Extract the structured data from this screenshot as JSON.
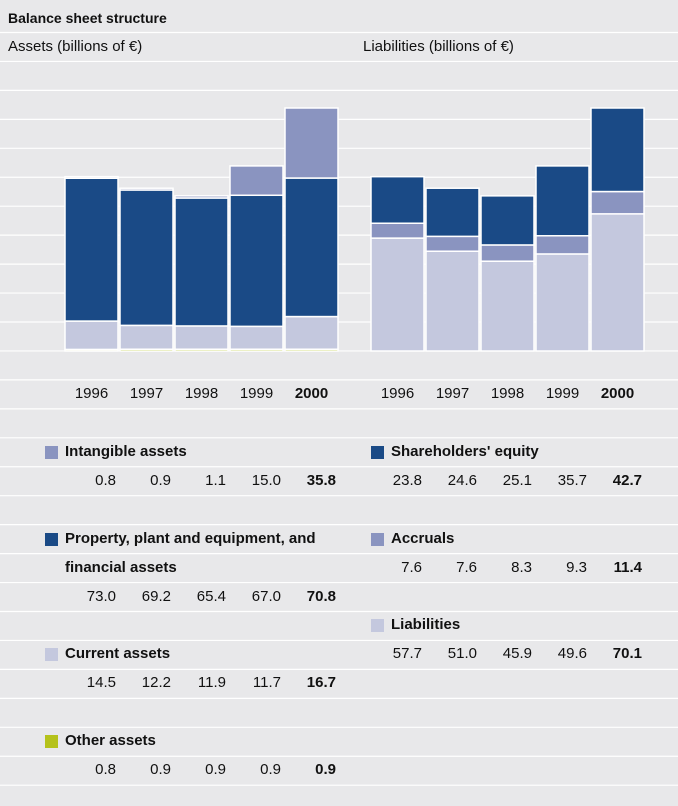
{
  "title": "Balance sheet structure",
  "chart_data": [
    {
      "type": "bar",
      "stacked": true,
      "subtitle": "Assets (billions of €)",
      "categories": [
        "1996",
        "1997",
        "1998",
        "1999",
        "2000"
      ],
      "series": [
        {
          "name": "Intangible assets",
          "color": "#8a94c0",
          "values": [
            0.8,
            0.9,
            1.1,
            15.0,
            35.8
          ],
          "value_labels": [
            "0.8",
            "0.9",
            "1.1",
            "15.0",
            "35.8"
          ]
        },
        {
          "name": "Property, plant and equipment, and financial assets",
          "color": "#1a4a86",
          "values": [
            73.0,
            69.2,
            65.4,
            67.0,
            70.8
          ],
          "value_labels": [
            "73.0",
            "69.2",
            "65.4",
            "67.0",
            "70.8"
          ]
        },
        {
          "name": "Current assets",
          "color": "#c4c8de",
          "values": [
            14.5,
            12.2,
            11.9,
            11.7,
            16.7
          ],
          "value_labels": [
            "14.5",
            "12.2",
            "11.9",
            "11.7",
            "16.7"
          ]
        },
        {
          "name": "Other assets",
          "color": "#b5c21b",
          "values": [
            0.8,
            0.9,
            0.9,
            0.9,
            0.9
          ],
          "value_labels": [
            "0.8",
            "0.9",
            "0.9",
            "0.9",
            "0.9"
          ]
        }
      ]
    },
    {
      "type": "bar",
      "stacked": true,
      "subtitle": "Liabilities (billions of €)",
      "categories": [
        "1996",
        "1997",
        "1998",
        "1999",
        "2000"
      ],
      "series": [
        {
          "name": "Shareholders' equity",
          "color": "#1a4a86",
          "values": [
            23.8,
            24.6,
            25.1,
            35.7,
            42.7
          ],
          "value_labels": [
            "23.8",
            "24.6",
            "25.1",
            "35.7",
            "42.7"
          ]
        },
        {
          "name": "Accruals",
          "color": "#8a94c0",
          "values": [
            7.6,
            7.6,
            8.3,
            9.3,
            11.4
          ],
          "value_labels": [
            "7.6",
            "7.6",
            "8.3",
            "9.3",
            "11.4"
          ]
        },
        {
          "name": "Liabilities",
          "color": "#c4c8de",
          "values": [
            57.7,
            51.0,
            45.9,
            49.6,
            70.1
          ],
          "value_labels": [
            "57.7",
            "51.0",
            "45.9",
            "49.6",
            "70.1"
          ]
        }
      ]
    }
  ]
}
